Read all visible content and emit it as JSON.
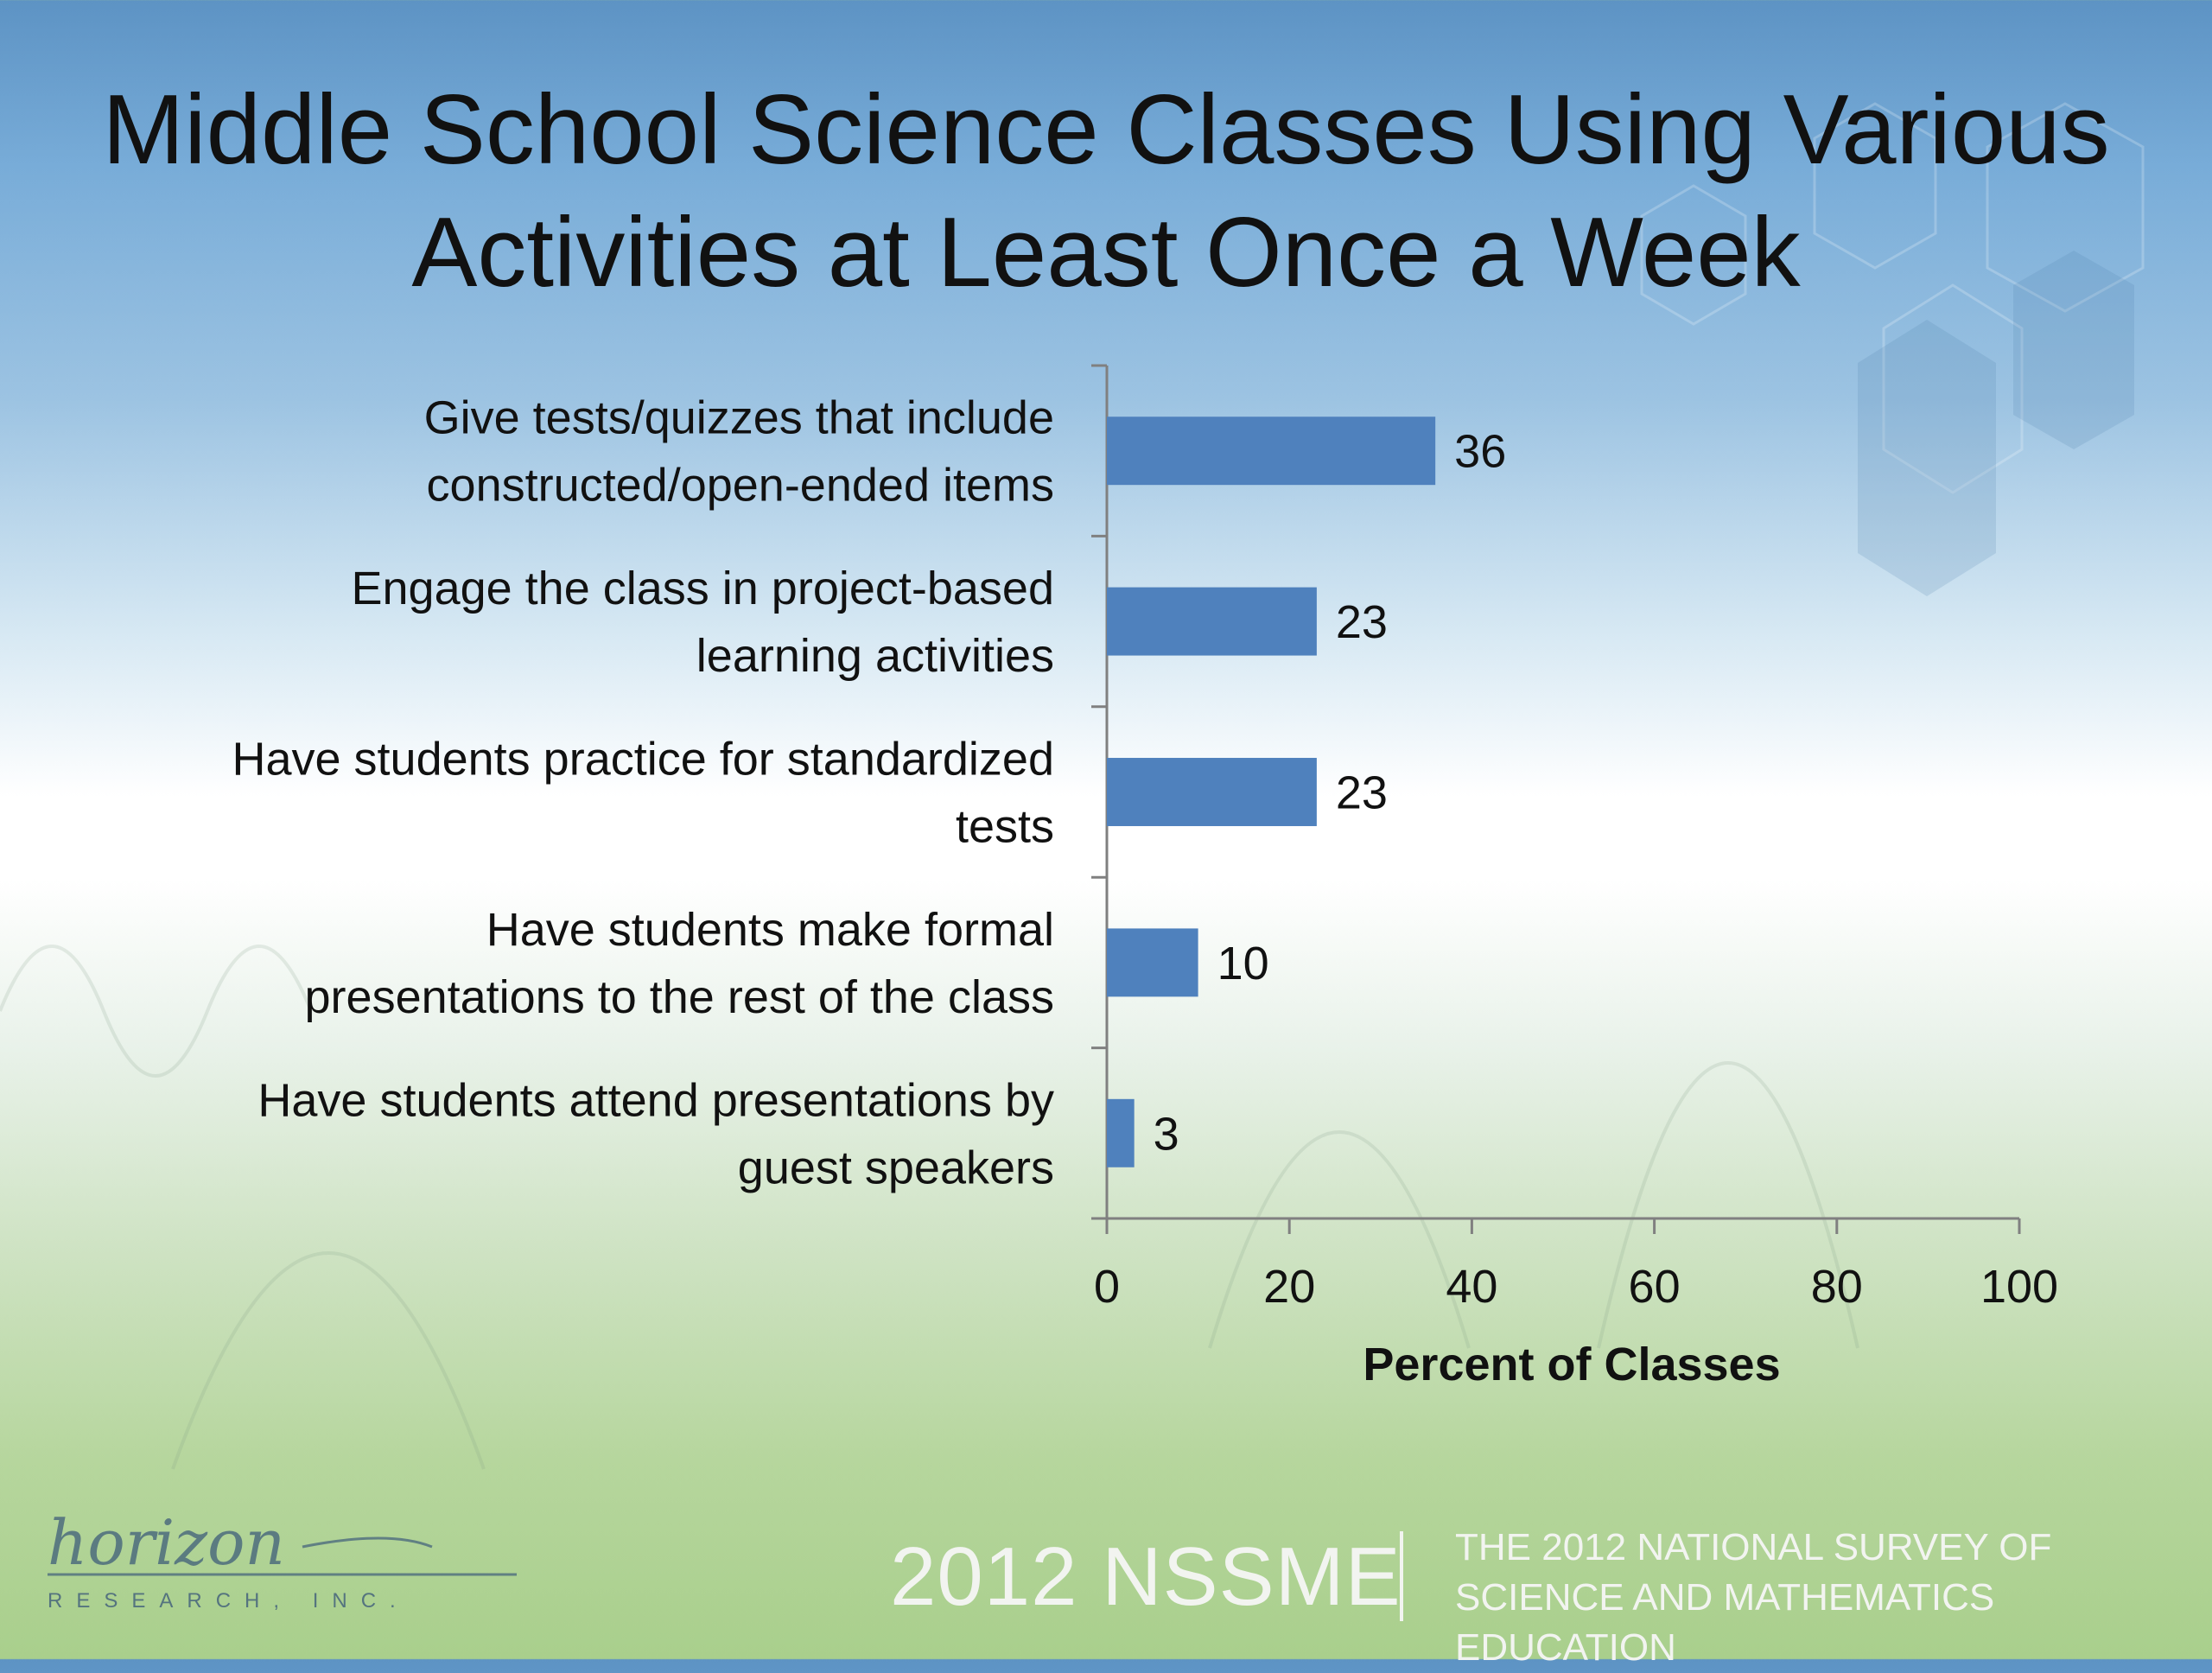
{
  "slide_title": "Middle School Science Classes Using Various Activities at Least Once a Week",
  "footer": {
    "logo_text": "horizon",
    "logo_subtext": "RESEARCH, INC.",
    "brand": "2012 NSSME",
    "tagline_line1": "THE 2012 NATIONAL SURVEY OF",
    "tagline_line2": "SCIENCE AND MATHEMATICS EDUCATION"
  },
  "colors": {
    "bar": "#4f81bd",
    "axis": "#808080",
    "text": "#111111"
  },
  "chart_data": {
    "type": "bar",
    "orientation": "horizontal",
    "categories": [
      [
        "Give tests/quizzes that include",
        "constructed/open-ended items"
      ],
      [
        "Engage the class in project-based",
        "learning activities"
      ],
      [
        "Have students practice for standardized",
        "tests"
      ],
      [
        "Have students make formal",
        "presentations to the rest of the class"
      ],
      [
        "Have students attend presentations by",
        "guest speakers"
      ]
    ],
    "values": [
      36,
      23,
      23,
      10,
      3
    ],
    "xlabel": "Percent of Classes",
    "ylabel": "",
    "xlim": [
      0,
      100
    ],
    "xticks": [
      0,
      20,
      40,
      60,
      80,
      100
    ],
    "data_labels": true,
    "grid": false,
    "legend": "none"
  }
}
